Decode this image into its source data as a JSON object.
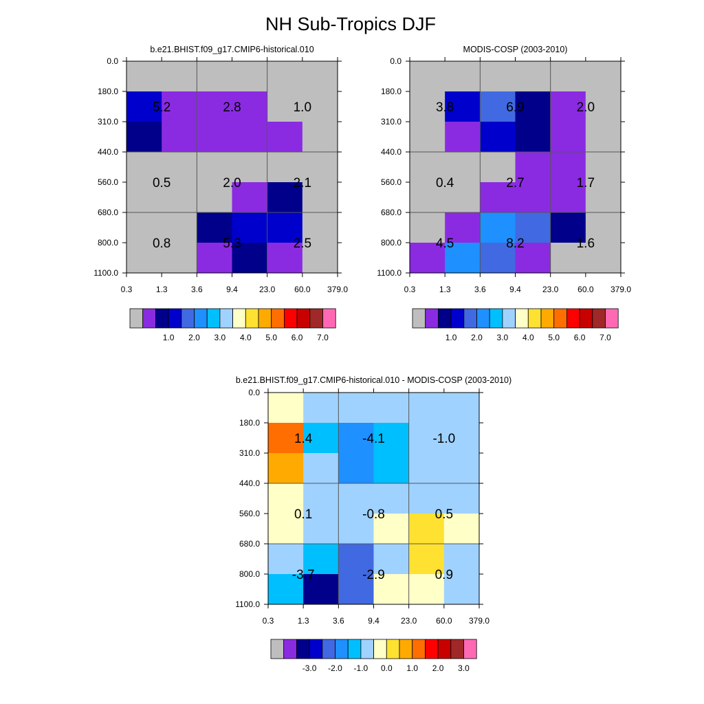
{
  "title": "NH Sub-Tropics DJF",
  "palette": {
    "missing": "#bebebe",
    "colors": [
      "#8a2be2",
      "#00008b",
      "#0000cd",
      "#4169e1",
      "#1e90ff",
      "#00bfff",
      "#a0d2ff",
      "#ffffc8",
      "#ffe132",
      "#ffaa00",
      "#ff6e00",
      "#ff0000",
      "#c80000",
      "#a02828",
      "#ff69b4"
    ]
  },
  "chart_data": [
    {
      "type": "heatmap",
      "title": "b.e21.BHIST.f09_g17.CMIP6-historical.010",
      "x_ticks": [
        "0.3",
        "1.3",
        "3.6",
        "9.4",
        "23.0",
        "60.0",
        "379.0"
      ],
      "y_ticks": [
        "0.0",
        "180.0",
        "310.0",
        "440.0",
        "560.0",
        "680.0",
        "800.0",
        "1100.0"
      ],
      "grid": [
        [
          0,
          0,
          0,
          0,
          0,
          0
        ],
        [
          3,
          1,
          1,
          1,
          0,
          0
        ],
        [
          2,
          1,
          1,
          1,
          1,
          0
        ],
        [
          0,
          0,
          0,
          0,
          0,
          0
        ],
        [
          0,
          0,
          0,
          1,
          2,
          0
        ],
        [
          0,
          0,
          2,
          3,
          3,
          0
        ],
        [
          0,
          0,
          1,
          2,
          1,
          0
        ]
      ],
      "labels": [
        {
          "row": 0,
          "col": 0,
          "text": "5.2"
        },
        {
          "row": 0,
          "col": 1,
          "text": "2.8"
        },
        {
          "row": 0,
          "col": 2,
          "text": "1.0"
        },
        {
          "row": 1,
          "col": 0,
          "text": "0.5"
        },
        {
          "row": 1,
          "col": 1,
          "text": "2.0"
        },
        {
          "row": 1,
          "col": 2,
          "text": "2.1"
        },
        {
          "row": 2,
          "col": 0,
          "text": "0.8"
        },
        {
          "row": 2,
          "col": 1,
          "text": "5.3"
        },
        {
          "row": 2,
          "col": 2,
          "text": "2.5"
        }
      ],
      "colorbar": {
        "labels": [
          "1.0",
          "2.0",
          "3.0",
          "4.0",
          "5.0",
          "6.0",
          "7.0"
        ]
      }
    },
    {
      "type": "heatmap",
      "title": "MODIS-COSP (2003-2010)",
      "x_ticks": [
        "0.3",
        "1.3",
        "3.6",
        "9.4",
        "23.0",
        "60.0",
        "379.0"
      ],
      "y_ticks": [
        "0.0",
        "180.0",
        "310.0",
        "440.0",
        "560.0",
        "680.0",
        "800.0",
        "1100.0"
      ],
      "grid": [
        [
          0,
          0,
          0,
          0,
          0,
          0
        ],
        [
          0,
          3,
          4,
          2,
          1,
          0
        ],
        [
          0,
          1,
          3,
          2,
          1,
          0
        ],
        [
          0,
          0,
          0,
          1,
          1,
          0
        ],
        [
          0,
          0,
          1,
          1,
          1,
          0
        ],
        [
          0,
          1,
          5,
          4,
          2,
          0
        ],
        [
          1,
          5,
          4,
          1,
          0,
          0
        ]
      ],
      "labels": [
        {
          "row": 0,
          "col": 0,
          "text": "3.8"
        },
        {
          "row": 0,
          "col": 1,
          "text": "6.9"
        },
        {
          "row": 0,
          "col": 2,
          "text": "2.0"
        },
        {
          "row": 1,
          "col": 0,
          "text": "0.4"
        },
        {
          "row": 1,
          "col": 1,
          "text": "2.7"
        },
        {
          "row": 1,
          "col": 2,
          "text": "1.7"
        },
        {
          "row": 2,
          "col": 0,
          "text": "4.5"
        },
        {
          "row": 2,
          "col": 1,
          "text": "8.2"
        },
        {
          "row": 2,
          "col": 2,
          "text": "1.6"
        }
      ],
      "colorbar": {
        "labels": [
          "1.0",
          "2.0",
          "3.0",
          "4.0",
          "5.0",
          "6.0",
          "7.0"
        ]
      }
    },
    {
      "type": "heatmap",
      "title": "b.e21.BHIST.f09_g17.CMIP6-historical.010 - MODIS-COSP (2003-2010)",
      "x_ticks": [
        "0.3",
        "1.3",
        "3.6",
        "9.4",
        "23.0",
        "60.0",
        "379.0"
      ],
      "y_ticks": [
        "0.0",
        "180.0",
        "310.0",
        "440.0",
        "560.0",
        "680.0",
        "800.0",
        "1100.0"
      ],
      "grid": [
        [
          8,
          7,
          7,
          7,
          7,
          7
        ],
        [
          11,
          6,
          5,
          6,
          7,
          7
        ],
        [
          10,
          7,
          5,
          6,
          7,
          7
        ],
        [
          8,
          7,
          7,
          7,
          7,
          7
        ],
        [
          8,
          7,
          7,
          8,
          9,
          8
        ],
        [
          7,
          6,
          4,
          7,
          9,
          7
        ],
        [
          6,
          2,
          4,
          8,
          8,
          7
        ]
      ],
      "labels": [
        {
          "row": 0,
          "col": 0,
          "text": "1.4"
        },
        {
          "row": 0,
          "col": 1,
          "text": "-4.1"
        },
        {
          "row": 0,
          "col": 2,
          "text": "-1.0"
        },
        {
          "row": 1,
          "col": 0,
          "text": "0.1"
        },
        {
          "row": 1,
          "col": 1,
          "text": "-0.8"
        },
        {
          "row": 1,
          "col": 2,
          "text": "0.5"
        },
        {
          "row": 2,
          "col": 0,
          "text": "-3.7"
        },
        {
          "row": 2,
          "col": 1,
          "text": "-2.9"
        },
        {
          "row": 2,
          "col": 2,
          "text": "0.9"
        }
      ],
      "colorbar": {
        "labels": [
          "-3.0",
          "-2.0",
          "-1.0",
          "0.0",
          "1.0",
          "2.0",
          "3.0"
        ]
      }
    }
  ]
}
